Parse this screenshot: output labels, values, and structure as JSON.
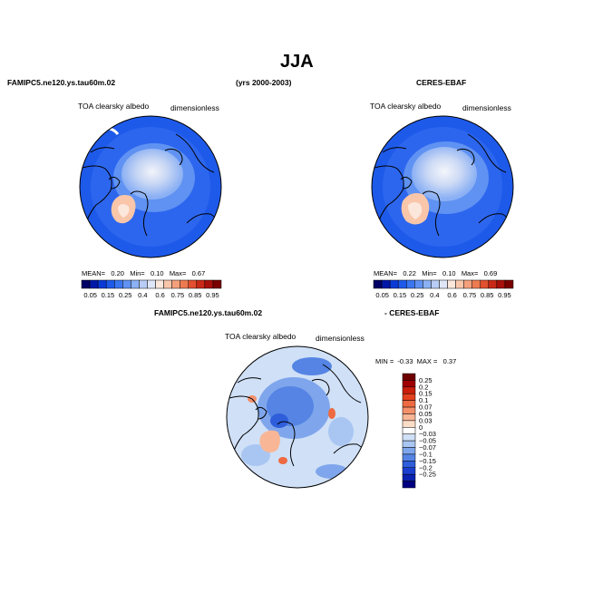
{
  "header": {
    "season": "JJA",
    "left_case": "FAMIPC5.ne120.ys.tau60m.02",
    "years": "(yrs 2000-2003)",
    "right_case": "CERES-EBAF",
    "diff_left": "FAMIPC5.ne120.ys.tau60m.02",
    "diff_right": "- CERES-EBAF"
  },
  "chart_data": [
    {
      "type": "heatmap",
      "projection": "polar stereographic (north)",
      "title": "TOA clearsky albedo",
      "units": "dimensionless",
      "stats": {
        "mean_label": "MEAN=",
        "mean": "0.20",
        "min_label": "Min=",
        "min": "0.10",
        "max_label": "Max=",
        "max": "0.67"
      },
      "colorbar": {
        "orientation": "horizontal",
        "ticks": [
          "0.05",
          "0.15",
          "0.25",
          "0.4",
          "0.6",
          "0.75",
          "0.85",
          "0.95"
        ],
        "colors": [
          "#000066",
          "#0018a8",
          "#0a3ad6",
          "#1e5aea",
          "#3a76f0",
          "#5f92f2",
          "#8bb0f4",
          "#b8ccf6",
          "#dee6f8",
          "#fbe7dc",
          "#f9c6aa",
          "#f4a07c",
          "#ee7a52",
          "#e2502f",
          "#c92a17",
          "#a8100a",
          "#7a0000"
        ]
      }
    },
    {
      "type": "heatmap",
      "projection": "polar stereographic (north)",
      "title": "TOA clearsky albedo",
      "units": "dimensionless",
      "stats": {
        "mean_label": "MEAN=",
        "mean": "0.22",
        "min_label": "Min=",
        "min": "0.10",
        "max_label": "Max=",
        "max": "0.69"
      },
      "colorbar": {
        "orientation": "horizontal",
        "ticks": [
          "0.05",
          "0.15",
          "0.25",
          "0.4",
          "0.6",
          "0.75",
          "0.85",
          "0.95"
        ],
        "colors": [
          "#000066",
          "#0018a8",
          "#0a3ad6",
          "#1e5aea",
          "#3a76f0",
          "#5f92f2",
          "#8bb0f4",
          "#b8ccf6",
          "#dee6f8",
          "#fbe7dc",
          "#f9c6aa",
          "#f4a07c",
          "#ee7a52",
          "#e2502f",
          "#c92a17",
          "#a8100a",
          "#7a0000"
        ]
      }
    },
    {
      "type": "heatmap",
      "projection": "polar stereographic (north)",
      "title": "TOA clearsky albedo",
      "units": "dimensionless",
      "stats": {
        "min_label": "MIN =",
        "min": "-0.33",
        "max_label": "MAX =",
        "max": "0.37"
      },
      "colorbar": {
        "orientation": "vertical",
        "ticks": [
          "0.25",
          "0.2",
          "0.15",
          "0.1",
          "0.07",
          "0.05",
          "0.03",
          "0",
          "-0.03",
          "-0.05",
          "-0.07",
          "-0.1",
          "-0.15",
          "-0.2",
          "-0.25"
        ],
        "colors": [
          "#6e0000",
          "#a00000",
          "#c81e0a",
          "#e2401e",
          "#ee6a42",
          "#f4906a",
          "#f8b696",
          "#fbdcc6",
          "#ffffff",
          "#cfe0f7",
          "#a9c6f2",
          "#7fa6ec",
          "#5584e4",
          "#2f5edb",
          "#1a3fd0",
          "#0a22b0",
          "#000080"
        ]
      }
    }
  ]
}
